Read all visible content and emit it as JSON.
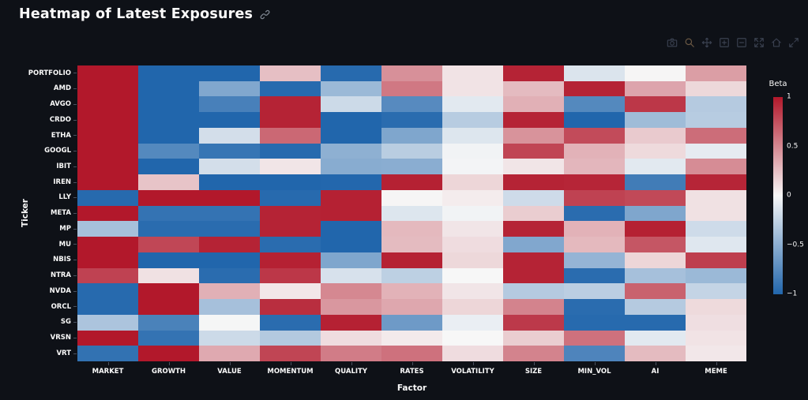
{
  "header": {
    "title": "Heatmap of Latest Exposures"
  },
  "modebar": {
    "icons": [
      "camera-icon",
      "zoom-icon",
      "pan-icon",
      "zoom-in-icon",
      "zoom-out-icon",
      "autoscale-icon",
      "reset-axes-icon",
      "fullscreen-icon"
    ],
    "active_icon": "zoom-icon"
  },
  "chart_data": {
    "type": "heatmap",
    "title": "Heatmap of Latest Exposures",
    "xlabel": "Factor",
    "ylabel": "Ticker",
    "x": [
      "MARKET",
      "GROWTH",
      "VALUE",
      "MOMENTUM",
      "QUALITY",
      "RATES",
      "VOLATILITY",
      "SIZE",
      "MIN_VOL",
      "AI",
      "MEME"
    ],
    "y": [
      "PORTFOLIO",
      "AMD",
      "AVGO",
      "CRDO",
      "ETHA",
      "GOOGL",
      "IBIT",
      "IREN",
      "LLY",
      "META",
      "MP",
      "MU",
      "NBIS",
      "NTRA",
      "NVDA",
      "ORCL",
      "SG",
      "VRSN",
      "VRT"
    ],
    "z": [
      [
        1.0,
        -1.0,
        -1.0,
        0.25,
        -0.97,
        0.46,
        0.09,
        0.95,
        -0.13,
        0.01,
        0.4
      ],
      [
        1.0,
        -1.0,
        -0.55,
        -0.97,
        -0.43,
        0.57,
        0.09,
        0.27,
        0.95,
        0.37,
        0.14
      ],
      [
        1.0,
        -1.0,
        -0.82,
        0.95,
        -0.2,
        -0.75,
        -0.1,
        0.32,
        -0.76,
        0.86,
        -0.31
      ],
      [
        1.0,
        -1.0,
        -1.0,
        0.95,
        -1.0,
        -0.96,
        -0.3,
        0.95,
        -1.0,
        -0.41,
        -0.3
      ],
      [
        1.0,
        -1.0,
        -0.17,
        0.64,
        -1.0,
        -0.56,
        -0.12,
        0.45,
        0.77,
        0.2,
        0.62
      ],
      [
        1.0,
        -0.76,
        -0.9,
        -0.97,
        -0.49,
        -0.29,
        -0.03,
        0.8,
        0.31,
        0.13,
        -0.08
      ],
      [
        1.0,
        -1.0,
        -0.17,
        0.08,
        -0.52,
        -0.51,
        -0.02,
        0.08,
        0.29,
        -0.1,
        0.48
      ],
      [
        1.0,
        0.23,
        -1.0,
        -1.0,
        -0.99,
        0.96,
        0.15,
        0.95,
        0.94,
        -0.85,
        0.94
      ],
      [
        -0.97,
        1.0,
        1.0,
        -0.97,
        0.96,
        0.01,
        0.05,
        -0.19,
        0.81,
        0.78,
        0.1
      ],
      [
        1.0,
        -0.91,
        -0.91,
        0.95,
        0.96,
        -0.12,
        -0.03,
        0.19,
        -0.96,
        -0.56,
        0.1
      ],
      [
        -0.38,
        -0.96,
        -0.96,
        0.95,
        -1.0,
        0.28,
        0.08,
        0.95,
        0.31,
        0.96,
        -0.19
      ],
      [
        1.0,
        0.79,
        0.95,
        -0.96,
        -1.0,
        0.27,
        0.12,
        -0.55,
        0.28,
        0.72,
        -0.11
      ],
      [
        1.0,
        -1.0,
        -1.0,
        0.96,
        -0.56,
        0.96,
        0.14,
        0.95,
        -0.46,
        0.15,
        0.83
      ],
      [
        0.81,
        0.1,
        -0.96,
        0.86,
        -0.15,
        -0.27,
        0.0,
        0.95,
        -0.96,
        -0.38,
        -0.43
      ],
      [
        -0.97,
        1.0,
        0.32,
        0.07,
        0.5,
        0.31,
        0.08,
        -0.31,
        -0.28,
        0.67,
        -0.24
      ],
      [
        -0.97,
        1.0,
        -0.38,
        0.9,
        0.43,
        0.36,
        0.15,
        0.52,
        -0.96,
        -0.31,
        0.13
      ],
      [
        -0.35,
        -0.81,
        -0.01,
        -0.96,
        0.96,
        -0.64,
        -0.06,
        0.85,
        -0.97,
        -0.97,
        0.11
      ],
      [
        1.0,
        -0.91,
        -0.2,
        -0.32,
        0.12,
        0.06,
        0.0,
        0.19,
        0.6,
        -0.1,
        0.09
      ],
      [
        -0.92,
        1.0,
        0.35,
        0.8,
        0.55,
        0.6,
        0.12,
        0.52,
        -0.79,
        0.27,
        0.07
      ]
    ],
    "zmin": -1,
    "zmax": 1,
    "colorbar": {
      "title": "Beta",
      "tick_labels": [
        "1",
        "0.5",
        "0",
        "−0.5",
        "−1"
      ],
      "tick_values": [
        1,
        0.5,
        0,
        -0.5,
        -1
      ]
    },
    "colors": {
      "positive_max": "#b2182b",
      "zero": "#f7f7f7",
      "negative_max": "#2166ac",
      "background": "#0e1117",
      "text": "#fafafa",
      "tick": "#4a5160"
    },
    "legend_position": "right",
    "grid": false
  }
}
